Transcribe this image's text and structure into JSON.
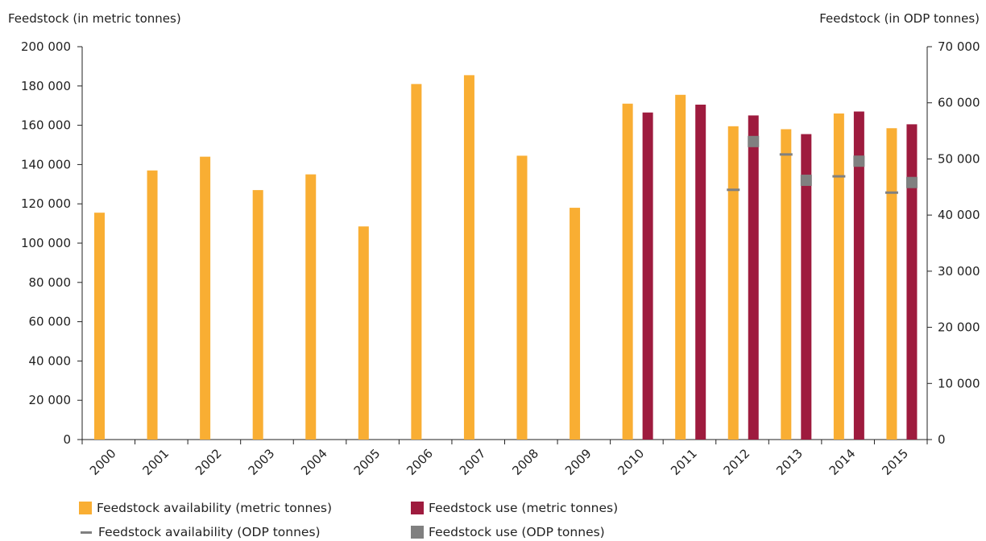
{
  "chart_data": {
    "type": "bar",
    "left_axis_title": "Feedstock (in metric tonnes)",
    "right_axis_title": "Feedstock (in ODP tonnes)",
    "categories": [
      "2000",
      "2001",
      "2002",
      "2003",
      "2004",
      "2005",
      "2006",
      "2007",
      "2008",
      "2009",
      "2010",
      "2011",
      "2012",
      "2013",
      "2014",
      "2015"
    ],
    "left_ylim": [
      0,
      200000
    ],
    "right_ylim": [
      0,
      70000
    ],
    "left_ticks": [
      "0",
      "20 000",
      "40 000",
      "60 000",
      "80 000",
      "100 000",
      "120 000",
      "140 000",
      "160 000",
      "180 000",
      "200 000"
    ],
    "right_ticks": [
      "0",
      "10 000",
      "20 000",
      "30 000",
      "40 000",
      "50 000",
      "60 000",
      "70 000"
    ],
    "series": [
      {
        "name": "Feedstock availability (metric tonnes)",
        "axis": "left",
        "kind": "bar",
        "color": "#f9ae33",
        "values": [
          115500,
          137000,
          144000,
          127000,
          135000,
          108500,
          181000,
          185500,
          144500,
          118000,
          171000,
          175500,
          159500,
          158000,
          166000,
          158500
        ]
      },
      {
        "name": "Feedstock use (metric tonnes)",
        "axis": "left",
        "kind": "bar",
        "color": "#9e1b3e",
        "values": [
          null,
          null,
          null,
          null,
          null,
          null,
          null,
          null,
          null,
          null,
          166500,
          170500,
          165000,
          155500,
          167000,
          160500
        ]
      },
      {
        "name": "Feedstock availability (ODP tonnes)",
        "axis": "right",
        "kind": "dash",
        "color": "#808080",
        "values": [
          null,
          null,
          null,
          null,
          null,
          null,
          null,
          null,
          null,
          null,
          null,
          null,
          44500,
          50800,
          46900,
          44000
        ]
      },
      {
        "name": "Feedstock use (ODP tonnes)",
        "axis": "right",
        "kind": "square",
        "color": "#808080",
        "values": [
          null,
          null,
          null,
          null,
          null,
          null,
          null,
          null,
          null,
          null,
          null,
          null,
          53100,
          46200,
          49600,
          45800
        ]
      }
    ],
    "grid": false,
    "legend_position": "bottom"
  }
}
